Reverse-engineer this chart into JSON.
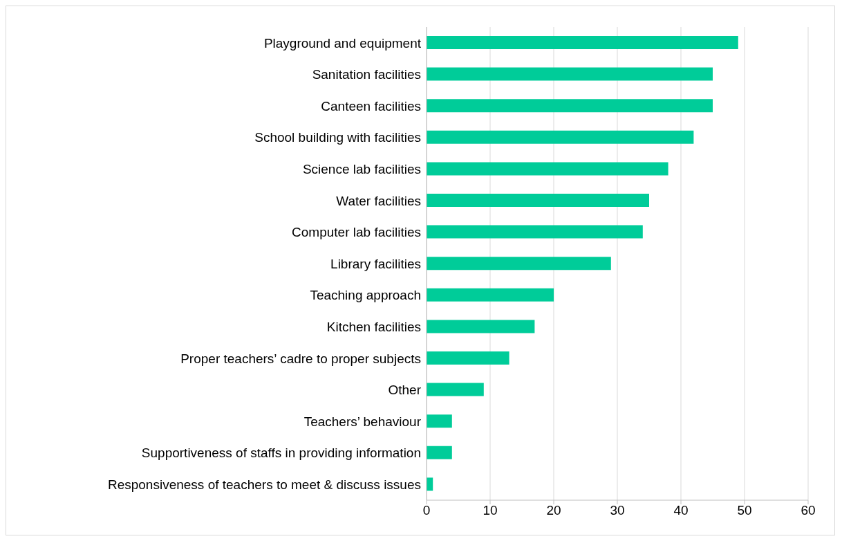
{
  "chart_data": {
    "type": "bar",
    "orientation": "horizontal",
    "categories": [
      "Playground and equipment",
      "Sanitation facilities",
      "Canteen facilities",
      "School building with facilities",
      "Science lab facilities",
      "Water facilities",
      "Computer lab facilities",
      "Library facilities",
      "Teaching approach",
      "Kitchen facilities",
      "Proper teachers’ cadre to proper subjects",
      "Other",
      "Teachers’ behaviour",
      "Supportiveness of staffs in providing information",
      "Responsiveness of teachers to meet & discuss issues"
    ],
    "values": [
      49,
      45,
      45,
      42,
      38,
      35,
      34,
      29,
      20,
      17,
      13,
      9,
      4,
      4,
      1
    ],
    "color": "#00cc99",
    "xlim": [
      0,
      60
    ],
    "xticks": [
      0,
      10,
      20,
      30,
      40,
      50,
      60
    ],
    "grid": "x"
  }
}
